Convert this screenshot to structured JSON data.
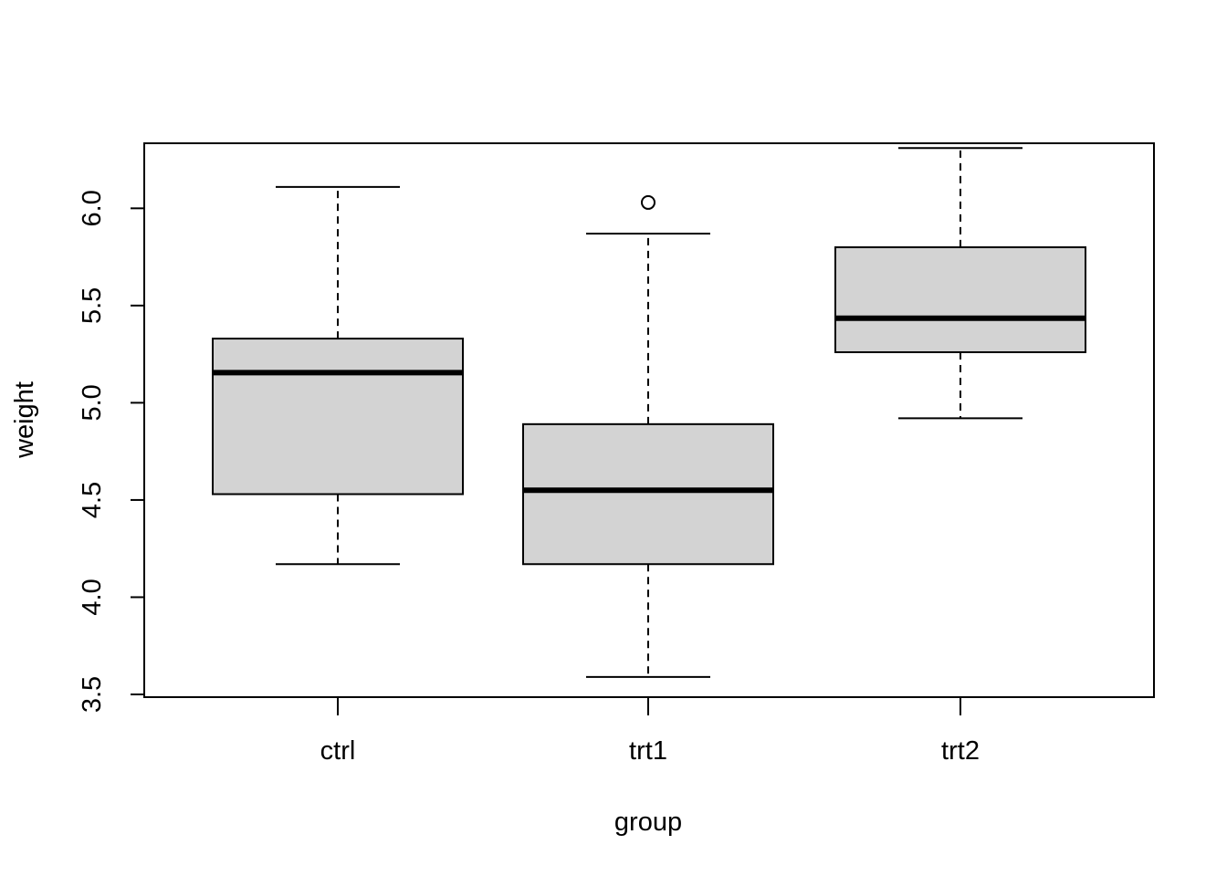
{
  "chart_data": {
    "type": "boxplot",
    "title": "",
    "xlabel": "group",
    "ylabel": "weight",
    "categories": [
      "ctrl",
      "trt1",
      "trt2"
    ],
    "ylim": [
      3.5,
      6.33
    ],
    "yticks": [
      3.5,
      4.0,
      4.5,
      5.0,
      5.5,
      6.0
    ],
    "ytick_labels": [
      "3.5",
      "4.0",
      "4.5",
      "5.0",
      "5.5",
      "6.0"
    ],
    "boxes": [
      {
        "name": "ctrl",
        "whisker_low": 4.17,
        "q1": 4.53,
        "median": 5.155,
        "q3": 5.33,
        "whisker_high": 6.11,
        "outliers": []
      },
      {
        "name": "trt1",
        "whisker_low": 3.59,
        "q1": 4.17,
        "median": 4.55,
        "q3": 4.89,
        "whisker_high": 5.87,
        "outliers": [
          6.03
        ]
      },
      {
        "name": "trt2",
        "whisker_low": 4.92,
        "q1": 5.26,
        "median": 5.435,
        "q3": 5.8,
        "whisker_high": 6.31,
        "outliers": []
      }
    ],
    "colors": {
      "box_fill": "#d3d3d3",
      "stroke": "#000000"
    },
    "grid": false,
    "legend": false
  }
}
